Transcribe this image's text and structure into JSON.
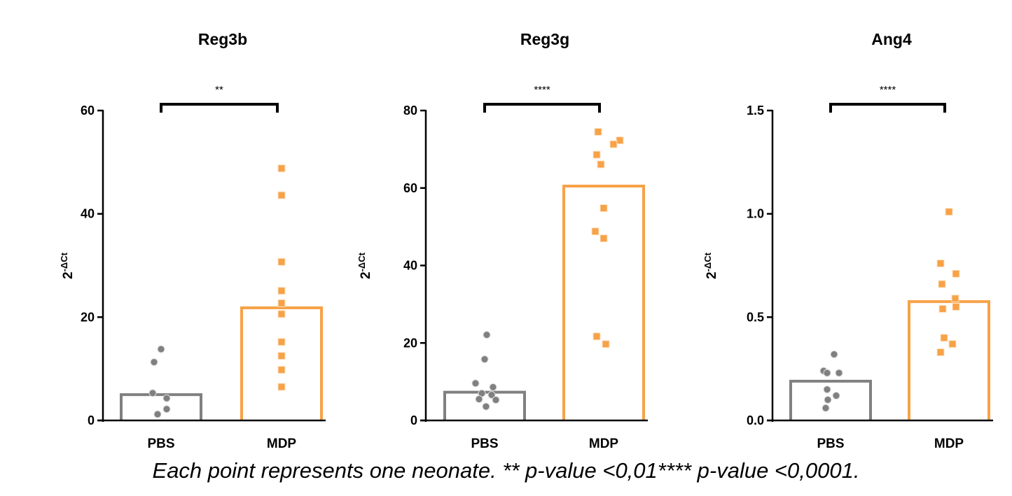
{
  "caption": "Each point represents one neonate. ** p-value <0,01**** p-value <0,0001.",
  "colors": {
    "pbs": "#808080",
    "mdp": "#F7A247",
    "axis": "#000000"
  },
  "chart_data": [
    {
      "type": "bar",
      "title": "Reg3b",
      "ylabel_base": "2",
      "ylabel_sup": "-ΔCt",
      "categories": [
        "PBS",
        "MDP"
      ],
      "values": [
        5.0,
        21.8
      ],
      "ylim": [
        0,
        60
      ],
      "yticks": [
        "0",
        "20",
        "40",
        "60"
      ],
      "ytick_values": [
        0,
        20,
        40,
        60
      ],
      "significance": "**",
      "points": [
        [
          13.8,
          11.3,
          5.3,
          4.3,
          2.2,
          1.2
        ],
        [
          48.8,
          43.6,
          30.7,
          25.1,
          22.7,
          20.6,
          15.2,
          12.5,
          9.8,
          6.5
        ]
      ]
    },
    {
      "type": "bar",
      "title": "Reg3g",
      "ylabel_base": "2",
      "ylabel_sup": "-ΔCt",
      "categories": [
        "PBS",
        "MDP"
      ],
      "values": [
        7.3,
        60.5
      ],
      "ylim": [
        0,
        80
      ],
      "yticks": [
        "0",
        "20",
        "40",
        "60",
        "80"
      ],
      "ytick_values": [
        0,
        20,
        40,
        60,
        80
      ],
      "significance": "****",
      "points": [
        [
          22.1,
          15.8,
          9.6,
          8.6,
          7.0,
          6.6,
          5.5,
          5.3,
          3.6
        ],
        [
          74.5,
          72.3,
          71.3,
          68.6,
          66.1,
          54.8,
          48.8,
          47.0,
          21.7,
          19.7
        ]
      ]
    },
    {
      "type": "bar",
      "title": "Ang4",
      "ylabel_base": "2",
      "ylabel_sup": "-ΔCt",
      "categories": [
        "PBS",
        "MDP"
      ],
      "values": [
        0.19,
        0.575
      ],
      "ylim": [
        0,
        1.5
      ],
      "yticks": [
        "0.0",
        "0.5",
        "1.0",
        "1.5"
      ],
      "ytick_values": [
        0,
        0.5,
        1.0,
        1.5
      ],
      "significance": "****",
      "points": [
        [
          0.32,
          0.24,
          0.23,
          0.23,
          0.15,
          0.12,
          0.1,
          0.06
        ],
        [
          1.01,
          0.76,
          0.71,
          0.66,
          0.59,
          0.55,
          0.54,
          0.4,
          0.37,
          0.33
        ]
      ]
    }
  ]
}
